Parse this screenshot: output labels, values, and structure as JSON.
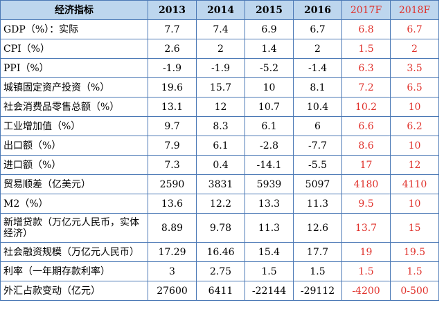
{
  "header": [
    "经济指标",
    "2013",
    "2014",
    "2015",
    "2016",
    "2017F",
    "2018F"
  ],
  "rows": [
    {
      "name": "GDP（%）：实际",
      "values": [
        "7.7",
        "7.4",
        "6.9",
        "6.7",
        "6.8",
        "6.7"
      ]
    },
    {
      "name": "CPI（%）",
      "values": [
        "2.6",
        "2",
        "1.4",
        "2",
        "1.5",
        "2"
      ]
    },
    {
      "name": "PPI（%）",
      "values": [
        "-1.9",
        "-1.9",
        "-5.2",
        "-1.4",
        "6.3",
        "3.5"
      ]
    },
    {
      "name": "城镇固定资产投资（%）",
      "values": [
        "19.6",
        "15.7",
        "10",
        "8.1",
        "7.2",
        "6.5"
      ]
    },
    {
      "name": "社会消费品零售总额（%）",
      "values": [
        "13.1",
        "12",
        "10.7",
        "10.4",
        "10.2",
        "10"
      ]
    },
    {
      "name": "工业增加值（%）",
      "values": [
        "9.7",
        "8.3",
        "6.1",
        "6",
        "6.6",
        "6.2"
      ]
    },
    {
      "name": "出口额（%）",
      "values": [
        "7.9",
        "6.1",
        "-2.8",
        "-7.7",
        "8.6",
        "10"
      ]
    },
    {
      "name": "进口额（%）",
      "values": [
        "7.3",
        "0.4",
        "-14.1",
        "-5.5",
        "17",
        "12"
      ]
    },
    {
      "name": "贸易顺差（亿美元）",
      "values": [
        "2590",
        "3831",
        "5939",
        "5097",
        "4180",
        "4110"
      ]
    },
    {
      "name": "M2（%）",
      "values": [
        "13.6",
        "12.2",
        "13.3",
        "11.3",
        "9.5",
        "10"
      ]
    },
    {
      "name": "新增贷款（万亿元人民币，实体经济）",
      "values": [
        "8.89",
        "9.78",
        "11.3",
        "12.6",
        "13.7",
        "15"
      ]
    },
    {
      "name": "社会融资规模（万亿元人民币）",
      "values": [
        "17.29",
        "16.46",
        "15.4",
        "17.7",
        "19",
        "19.5"
      ]
    },
    {
      "name": "利率（一年期存款利率）",
      "values": [
        "3",
        "2.75",
        "1.5",
        "1.5",
        "1.5",
        "1.5"
      ]
    },
    {
      "name": "外汇占款变动（亿元）",
      "values": [
        "27600",
        "6411",
        "-22144",
        "-29112",
        "-4200",
        "0-500"
      ]
    }
  ],
  "colors": {
    "border": "#4a78b5",
    "header_bg": "#bdd6ee",
    "forecast_text": "#e0312b"
  }
}
